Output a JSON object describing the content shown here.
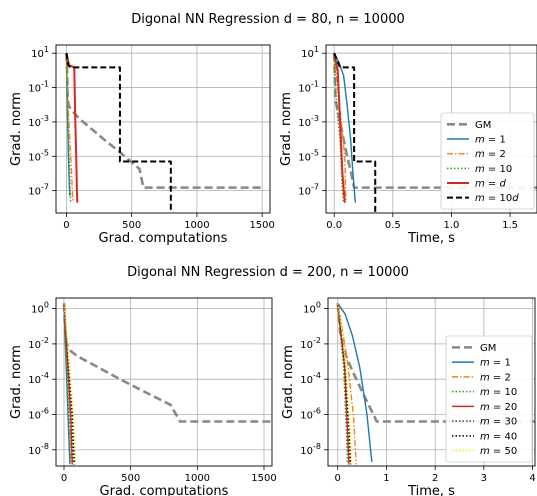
{
  "colors": {
    "GM": "#888888",
    "m1": "#1f77b4",
    "m2": "#ff7f0e",
    "m10": "#2ca02c",
    "md": "#d62728",
    "m10d": "#000000",
    "m30": "#444444",
    "m40": "#000000",
    "m50": "#ffee00",
    "grid": "#b0b0b0"
  },
  "chart_data": [
    {
      "type": "line",
      "suptitle": "Digonal NN Regression  d = 80, n = 10000",
      "xlabel": "Grad. computations",
      "ylabel": "Grad. norm",
      "yscale": "log",
      "xlim": [
        -80,
        1560
      ],
      "ylim": [
        5e-09,
        30
      ],
      "xticks": [
        0,
        500,
        1000,
        1500
      ],
      "xticklabels": [
        "0",
        "500",
        "1000",
        "1500"
      ],
      "yticks": [
        1e-07,
        1e-05,
        0.001,
        0.1,
        10
      ],
      "yticklabels": [
        "10^-7",
        "10^-5",
        "10^-3",
        "10^-1",
        "10^1"
      ],
      "grid": true,
      "legend": null,
      "series": [
        {
          "key": "GM",
          "points": [
            [
              0,
              10
            ],
            [
              5,
              1
            ],
            [
              10,
              0.02
            ],
            [
              20,
              0.008
            ],
            [
              50,
              0.004
            ],
            [
              100,
              0.0015
            ],
            [
              200,
              0.00035
            ],
            [
              300,
              8e-05
            ],
            [
              400,
              2e-05
            ],
            [
              500,
              4.5e-06
            ],
            [
              560,
              1.8e-06
            ],
            [
              590,
              1.5e-07
            ],
            [
              620,
              1.5e-07
            ],
            [
              1000,
              1.5e-07
            ],
            [
              1500,
              1.5e-07
            ]
          ]
        },
        {
          "key": "m1",
          "points": [
            [
              0,
              10
            ],
            [
              8,
              0.005
            ],
            [
              15,
              1e-05
            ],
            [
              25,
              5e-08
            ]
          ]
        },
        {
          "key": "m2",
          "points": [
            [
              0,
              10
            ],
            [
              12,
              0.01
            ],
            [
              25,
              0.0001
            ],
            [
              40,
              1e-06
            ],
            [
              48,
              2e-08
            ]
          ]
        },
        {
          "key": "m10",
          "points": [
            [
              0,
              10
            ],
            [
              6,
              0.01
            ],
            [
              15,
              0.0001
            ],
            [
              25,
              1e-06
            ],
            [
              32,
              2e-08
            ]
          ]
        },
        {
          "key": "md",
          "points": [
            [
              0,
              10
            ],
            [
              20,
              2
            ],
            [
              60,
              1.5
            ],
            [
              68,
              0.001
            ],
            [
              75,
              1e-05
            ],
            [
              80,
              1e-07
            ],
            [
              84,
              2e-08
            ]
          ]
        },
        {
          "key": "m10d",
          "points": [
            [
              0,
              10
            ],
            [
              15,
              2
            ],
            [
              30,
              1.5
            ],
            [
              410,
              1.5
            ],
            [
              410,
              5e-06
            ],
            [
              800,
              5e-06
            ],
            [
              800,
              2e-09
            ]
          ]
        }
      ]
    },
    {
      "type": "line",
      "xlabel": "Time, s",
      "ylabel": "Grad. norm",
      "yscale": "log",
      "xlim": [
        -0.07,
        1.73
      ],
      "ylim": [
        5e-09,
        30
      ],
      "xticks": [
        0,
        0.5,
        1.0,
        1.5
      ],
      "xticklabels": [
        "0.0",
        "0.5",
        "1.0",
        "1.5"
      ],
      "yticks": [
        1e-07,
        1e-05,
        0.001,
        0.1,
        10
      ],
      "yticklabels": [
        "10^-7",
        "10^-5",
        "10^-3",
        "10^-1",
        "10^1"
      ],
      "grid": true,
      "legend": "lower-right",
      "series": [
        {
          "key": "GM",
          "label": "GM",
          "points": [
            [
              0,
              10
            ],
            [
              0.01,
              0.02
            ],
            [
              0.05,
              0.001
            ],
            [
              0.08,
              0.0001
            ],
            [
              0.11,
              1e-05
            ],
            [
              0.14,
              1.5e-06
            ],
            [
              0.17,
              1.5e-07
            ],
            [
              1.73,
              1.5e-07
            ]
          ]
        },
        {
          "key": "m1",
          "label": "m = 1",
          "points": [
            [
              0,
              10
            ],
            [
              0.04,
              3
            ],
            [
              0.08,
              0.5
            ],
            [
              0.11,
              0.01
            ],
            [
              0.14,
              0.0001
            ],
            [
              0.16,
              1e-06
            ],
            [
              0.18,
              2e-08
            ]
          ]
        },
        {
          "key": "m2",
          "label": "m = 2",
          "points": [
            [
              0,
              10
            ],
            [
              0.03,
              0.1
            ],
            [
              0.06,
              0.001
            ],
            [
              0.09,
              1e-05
            ],
            [
              0.1,
              2e-08
            ]
          ]
        },
        {
          "key": "m10",
          "label": "m = 10",
          "points": [
            [
              0,
              10
            ],
            [
              0.02,
              0.01
            ],
            [
              0.05,
              0.0001
            ],
            [
              0.07,
              1e-07
            ],
            [
              0.08,
              2e-08
            ]
          ]
        },
        {
          "key": "md",
          "label": "m = d",
          "points": [
            [
              0,
              10
            ],
            [
              0.03,
              1
            ],
            [
              0.05,
              0.001
            ],
            [
              0.07,
              1e-06
            ],
            [
              0.09,
              2e-08
            ]
          ]
        },
        {
          "key": "m10d",
          "label": "m = 10d",
          "points": [
            [
              0,
              10
            ],
            [
              0.05,
              1.5
            ],
            [
              0.17,
              1.5
            ],
            [
              0.17,
              5e-06
            ],
            [
              0.35,
              5e-06
            ],
            [
              0.35,
              2e-09
            ]
          ]
        }
      ]
    },
    {
      "type": "line",
      "suptitle": "Digonal NN Regression  d = 200, n = 10000",
      "xlabel": "Grad. computations",
      "ylabel": "Grad. norm",
      "yscale": "log",
      "xlim": [
        -60,
        1560
      ],
      "ylim": [
        1.2e-09,
        4
      ],
      "xticks": [
        0,
        500,
        1000,
        1500
      ],
      "xticklabels": [
        "0",
        "500",
        "1000",
        "1500"
      ],
      "yticks": [
        1e-08,
        1e-06,
        0.0001,
        0.01,
        1
      ],
      "yticklabels": [
        "10^-8",
        "10^-6",
        "10^-4",
        "10^-2",
        "10^0"
      ],
      "grid": true,
      "legend": null,
      "series": [
        {
          "key": "GM",
          "points": [
            [
              0,
              2
            ],
            [
              5,
              0.2
            ],
            [
              10,
              0.03
            ],
            [
              20,
              0.01
            ],
            [
              50,
              0.004
            ],
            [
              100,
              0.002
            ],
            [
              200,
              0.0008
            ],
            [
              400,
              0.00012
            ],
            [
              600,
              2e-05
            ],
            [
              800,
              3.5e-06
            ],
            [
              870,
              4e-07
            ],
            [
              1560,
              4e-07
            ]
          ]
        },
        {
          "key": "m1",
          "points": [
            [
              0,
              2
            ],
            [
              10,
              0.01
            ],
            [
              20,
              0.0001
            ],
            [
              30,
              1e-06
            ],
            [
              40,
              1e-08
            ],
            [
              45,
              1.5e-09
            ]
          ]
        },
        {
          "key": "m2",
          "points": [
            [
              0,
              2
            ],
            [
              15,
              0.01
            ],
            [
              30,
              0.0001
            ],
            [
              45,
              1e-06
            ],
            [
              55,
              1.5e-09
            ]
          ]
        },
        {
          "key": "m10",
          "points": [
            [
              0,
              2
            ],
            [
              12,
              0.01
            ],
            [
              25,
              0.0001
            ],
            [
              38,
              1e-06
            ],
            [
              48,
              1.5e-09
            ]
          ]
        },
        {
          "key": "m20",
          "points": [
            [
              0,
              2
            ],
            [
              18,
              0.01
            ],
            [
              35,
              0.0001
            ],
            [
              50,
              1e-06
            ],
            [
              62,
              1.5e-09
            ]
          ]
        },
        {
          "key": "m30",
          "points": [
            [
              0,
              2
            ],
            [
              22,
              0.01
            ],
            [
              40,
              0.0001
            ],
            [
              58,
              1e-06
            ],
            [
              70,
              1.5e-09
            ]
          ]
        },
        {
          "key": "m40",
          "points": [
            [
              0,
              2
            ],
            [
              25,
              0.01
            ],
            [
              45,
              0.0001
            ],
            [
              65,
              1e-06
            ],
            [
              78,
              1.5e-09
            ]
          ]
        },
        {
          "key": "m50",
          "points": [
            [
              0,
              2
            ],
            [
              28,
              0.01
            ],
            [
              50,
              0.0001
            ],
            [
              72,
              1e-06
            ],
            [
              88,
              1.5e-09
            ]
          ]
        }
      ]
    },
    {
      "type": "line",
      "xlabel": "Time, s",
      "ylabel": "Grad. norm",
      "yscale": "log",
      "xlim": [
        -0.2,
        4.05
      ],
      "ylim": [
        1.2e-09,
        4
      ],
      "xticks": [
        0,
        1,
        2,
        3,
        4
      ],
      "xticklabels": [
        "0",
        "1",
        "2",
        "3",
        "4"
      ],
      "yticks": [
        1e-08,
        1e-06,
        0.0001,
        0.01,
        1
      ],
      "yticklabels": [
        "10^-8",
        "10^-6",
        "10^-4",
        "10^-2",
        "10^0"
      ],
      "grid": true,
      "legend": "center-right",
      "series": [
        {
          "key": "GM",
          "label": "GM",
          "points": [
            [
              0,
              2
            ],
            [
              0.05,
              0.05
            ],
            [
              0.15,
              0.003
            ],
            [
              0.3,
              0.0003
            ],
            [
              0.5,
              2e-05
            ],
            [
              0.7,
              1.5e-06
            ],
            [
              0.8,
              4e-07
            ],
            [
              4.05,
              4e-07
            ]
          ]
        },
        {
          "key": "m1",
          "label": "m = 1",
          "points": [
            [
              0,
              2
            ],
            [
              0.15,
              0.5
            ],
            [
              0.3,
              0.03
            ],
            [
              0.45,
              0.0005
            ],
            [
              0.6,
              1e-06
            ],
            [
              0.7,
              2e-09
            ]
          ]
        },
        {
          "key": "m2",
          "label": "m = 2",
          "points": [
            [
              0,
              2
            ],
            [
              0.1,
              0.05
            ],
            [
              0.2,
              0.001
            ],
            [
              0.32,
              1e-06
            ],
            [
              0.38,
              1.5e-09
            ]
          ]
        },
        {
          "key": "m10",
          "label": "m = 10",
          "points": [
            [
              0,
              2
            ],
            [
              0.05,
              0.05
            ],
            [
              0.12,
              0.0005
            ],
            [
              0.18,
              1e-07
            ],
            [
              0.2,
              1.5e-09
            ]
          ]
        },
        {
          "key": "m20",
          "label": "m = 20",
          "points": [
            [
              0,
              2
            ],
            [
              0.06,
              0.05
            ],
            [
              0.14,
              0.0005
            ],
            [
              0.2,
              1e-07
            ],
            [
              0.23,
              1.5e-09
            ]
          ]
        },
        {
          "key": "m30",
          "label": "m = 30",
          "points": [
            [
              0,
              2
            ],
            [
              0.07,
              0.05
            ],
            [
              0.15,
              0.0005
            ],
            [
              0.22,
              1e-07
            ],
            [
              0.25,
              1.5e-09
            ]
          ]
        },
        {
          "key": "m40",
          "label": "m = 40",
          "points": [
            [
              0,
              2
            ],
            [
              0.08,
              0.05
            ],
            [
              0.16,
              0.0005
            ],
            [
              0.24,
              1e-07
            ],
            [
              0.27,
              1.5e-09
            ]
          ]
        },
        {
          "key": "m50",
          "label": "m = 50",
          "points": [
            [
              0,
              2
            ],
            [
              0.09,
              0.05
            ],
            [
              0.17,
              0.0005
            ],
            [
              0.26,
              1e-07
            ],
            [
              0.29,
              1.5e-09
            ]
          ]
        }
      ]
    }
  ]
}
